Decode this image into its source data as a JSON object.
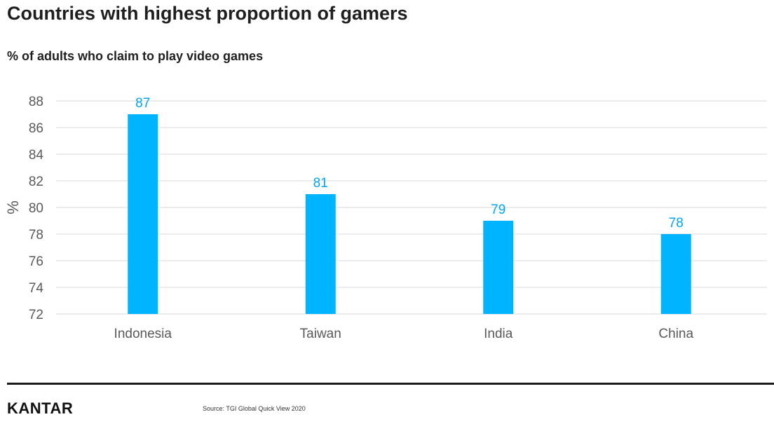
{
  "title": "Countries with highest proportion of gamers",
  "subtitle": "% of adults who claim to play video games",
  "footer": {
    "brand": "KANTAR",
    "source": "Source: TGI Global Quick View 2020"
  },
  "colors": {
    "bar": "#00B4FF",
    "data_label": "#00A6F0",
    "grid": "#D9D9D9",
    "tick_text": "#595959"
  },
  "chart_data": {
    "type": "bar",
    "categories": [
      "Indonesia",
      "Taiwan",
      "India",
      "China"
    ],
    "values": [
      87,
      81,
      79,
      78
    ],
    "data_labels": [
      "87",
      "81",
      "79",
      "78"
    ],
    "ylabel": "%",
    "xlabel": "",
    "ylim": [
      72,
      88
    ],
    "yticks": [
      72,
      74,
      76,
      78,
      80,
      82,
      84,
      86,
      88
    ],
    "grid": true,
    "legend": "none"
  }
}
